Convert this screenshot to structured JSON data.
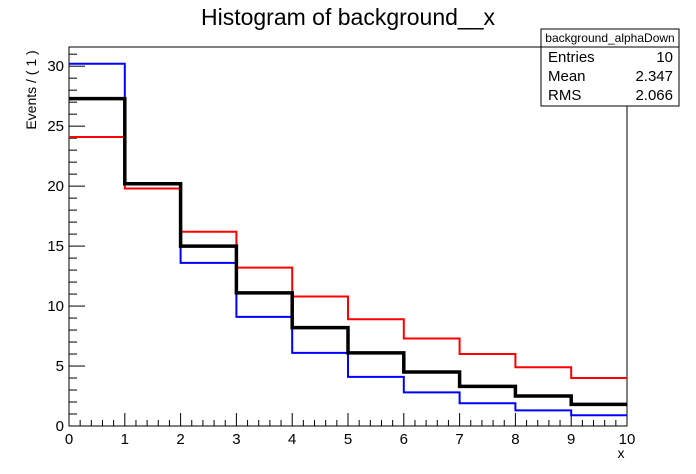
{
  "chart_data": {
    "type": "histogram",
    "title": "Histogram of background__x",
    "xlabel": "x",
    "ylabel": "Events / ( 1 )",
    "xlim": [
      0,
      10
    ],
    "ylim": [
      0,
      31.6
    ],
    "bin_edges": [
      0,
      1,
      2,
      3,
      4,
      5,
      6,
      7,
      8,
      9,
      10
    ],
    "x_ticks": [
      0,
      1,
      2,
      3,
      4,
      5,
      6,
      7,
      8,
      9,
      10
    ],
    "y_ticks": [
      0,
      5,
      10,
      15,
      20,
      25,
      30
    ],
    "grid": false,
    "series": [
      {
        "color": "#0000ff",
        "line_width": 2,
        "values": [
          30.2,
          20.2,
          13.6,
          9.1,
          6.1,
          4.1,
          2.8,
          1.9,
          1.3,
          0.9
        ]
      },
      {
        "color": "#ff0000",
        "line_width": 2,
        "values": [
          24.1,
          19.8,
          16.2,
          13.2,
          10.8,
          8.9,
          7.3,
          6.0,
          4.9,
          4.0
        ]
      },
      {
        "color": "#000000",
        "line_width": 3.5,
        "values": [
          27.3,
          20.2,
          15.0,
          11.1,
          8.2,
          6.1,
          4.5,
          3.3,
          2.5,
          1.8
        ]
      }
    ],
    "stats_box": {
      "title": "background_alphaDown",
      "position": "top-right",
      "rows": [
        {
          "label": "Entries",
          "value": "10"
        },
        {
          "label": "Mean",
          "value": "2.347"
        },
        {
          "label": "RMS",
          "value": "2.066"
        }
      ]
    }
  }
}
